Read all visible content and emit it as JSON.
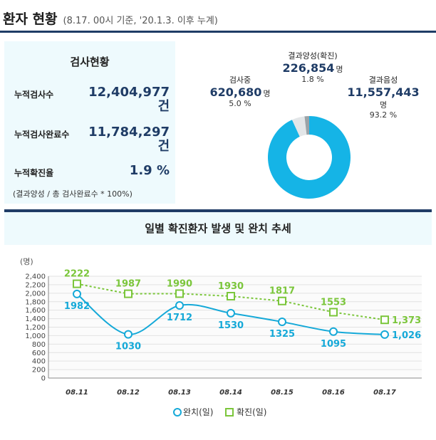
{
  "header": {
    "title": "환자 현황",
    "subtitle": "(8.17. 00시 기준, '20.1.3. 이후 누계)"
  },
  "test_status": {
    "title": "검사현황",
    "rows": [
      {
        "label": "누적검사수",
        "value": "12,404,977",
        "unit": "건"
      },
      {
        "label": "누적검사완료수",
        "value": "11,784,297",
        "unit": "건"
      },
      {
        "label": "누적확진율",
        "value": "1.9 %",
        "unit": ""
      }
    ],
    "note": "(결과양성 / 총 검사완료수 * 100%)"
  },
  "donut": {
    "positive": {
      "label": "결과양성(확진)",
      "value": "226,854",
      "unit": "명",
      "pct": "1.8 %",
      "share": 1.8,
      "color": "#9aa3a8"
    },
    "pending": {
      "label": "검사중",
      "value": "620,680",
      "unit": "명",
      "pct": "5.0 %",
      "share": 5.0,
      "color": "#e3e6e8"
    },
    "negative": {
      "label": "결과음성",
      "value": "11,557,443",
      "unit": "명",
      "pct": "93.2 %",
      "share": 93.2,
      "color": "#15b4e6"
    }
  },
  "chart_title": "일별 확진환자 발생 및 완치 추세",
  "chart_data": {
    "type": "line",
    "ylabel": "(명)",
    "ylim": [
      0,
      2400
    ],
    "yticks": [
      "0",
      "200",
      "400",
      "600",
      "800",
      "1,000",
      "1,200",
      "1,400",
      "1,600",
      "1,800",
      "2,000",
      "2,200",
      "2,400"
    ],
    "categories": [
      "08.11",
      "08.12",
      "08.13",
      "08.14",
      "08.15",
      "08.16",
      "08.17"
    ],
    "series": [
      {
        "name": "완치(일)",
        "values": [
          1982,
          1030,
          1712,
          1530,
          1325,
          1095,
          1026
        ],
        "labels": [
          "1982",
          "1030",
          "1712",
          "1530",
          "1325",
          "1095",
          "1,026"
        ],
        "color": "#15a9d8"
      },
      {
        "name": "확진(일)",
        "values": [
          2222,
          1987,
          1990,
          1930,
          1817,
          1553,
          1373
        ],
        "labels": [
          "2222",
          "1987",
          "1990",
          "1930",
          "1817",
          "1553",
          "1,373"
        ],
        "color": "#7bc63b"
      }
    ],
    "legend": "bottom",
    "grid": true
  }
}
